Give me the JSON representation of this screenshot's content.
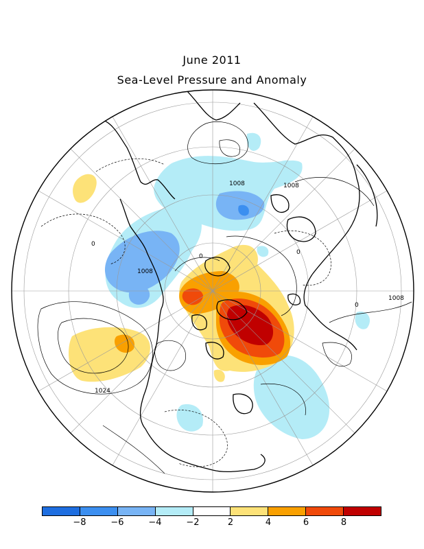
{
  "title": "June 2011",
  "subtitle": "Sea-Level Pressure and Anomaly",
  "colorbar": {
    "colors": [
      "#1e6ee0",
      "#3c8ff0",
      "#78b4f5",
      "#b4ecf7",
      "#ffffff",
      "#fde278",
      "#f9a000",
      "#f04a0a",
      "#c00000"
    ],
    "tick_labels": [
      "−8",
      "−6",
      "−4",
      "−2",
      "2",
      "4",
      "6",
      "8"
    ]
  },
  "contour_labels": [
    "1008",
    "1008",
    "1008",
    "1008",
    "1024",
    "0",
    "0",
    "0",
    "0"
  ]
}
